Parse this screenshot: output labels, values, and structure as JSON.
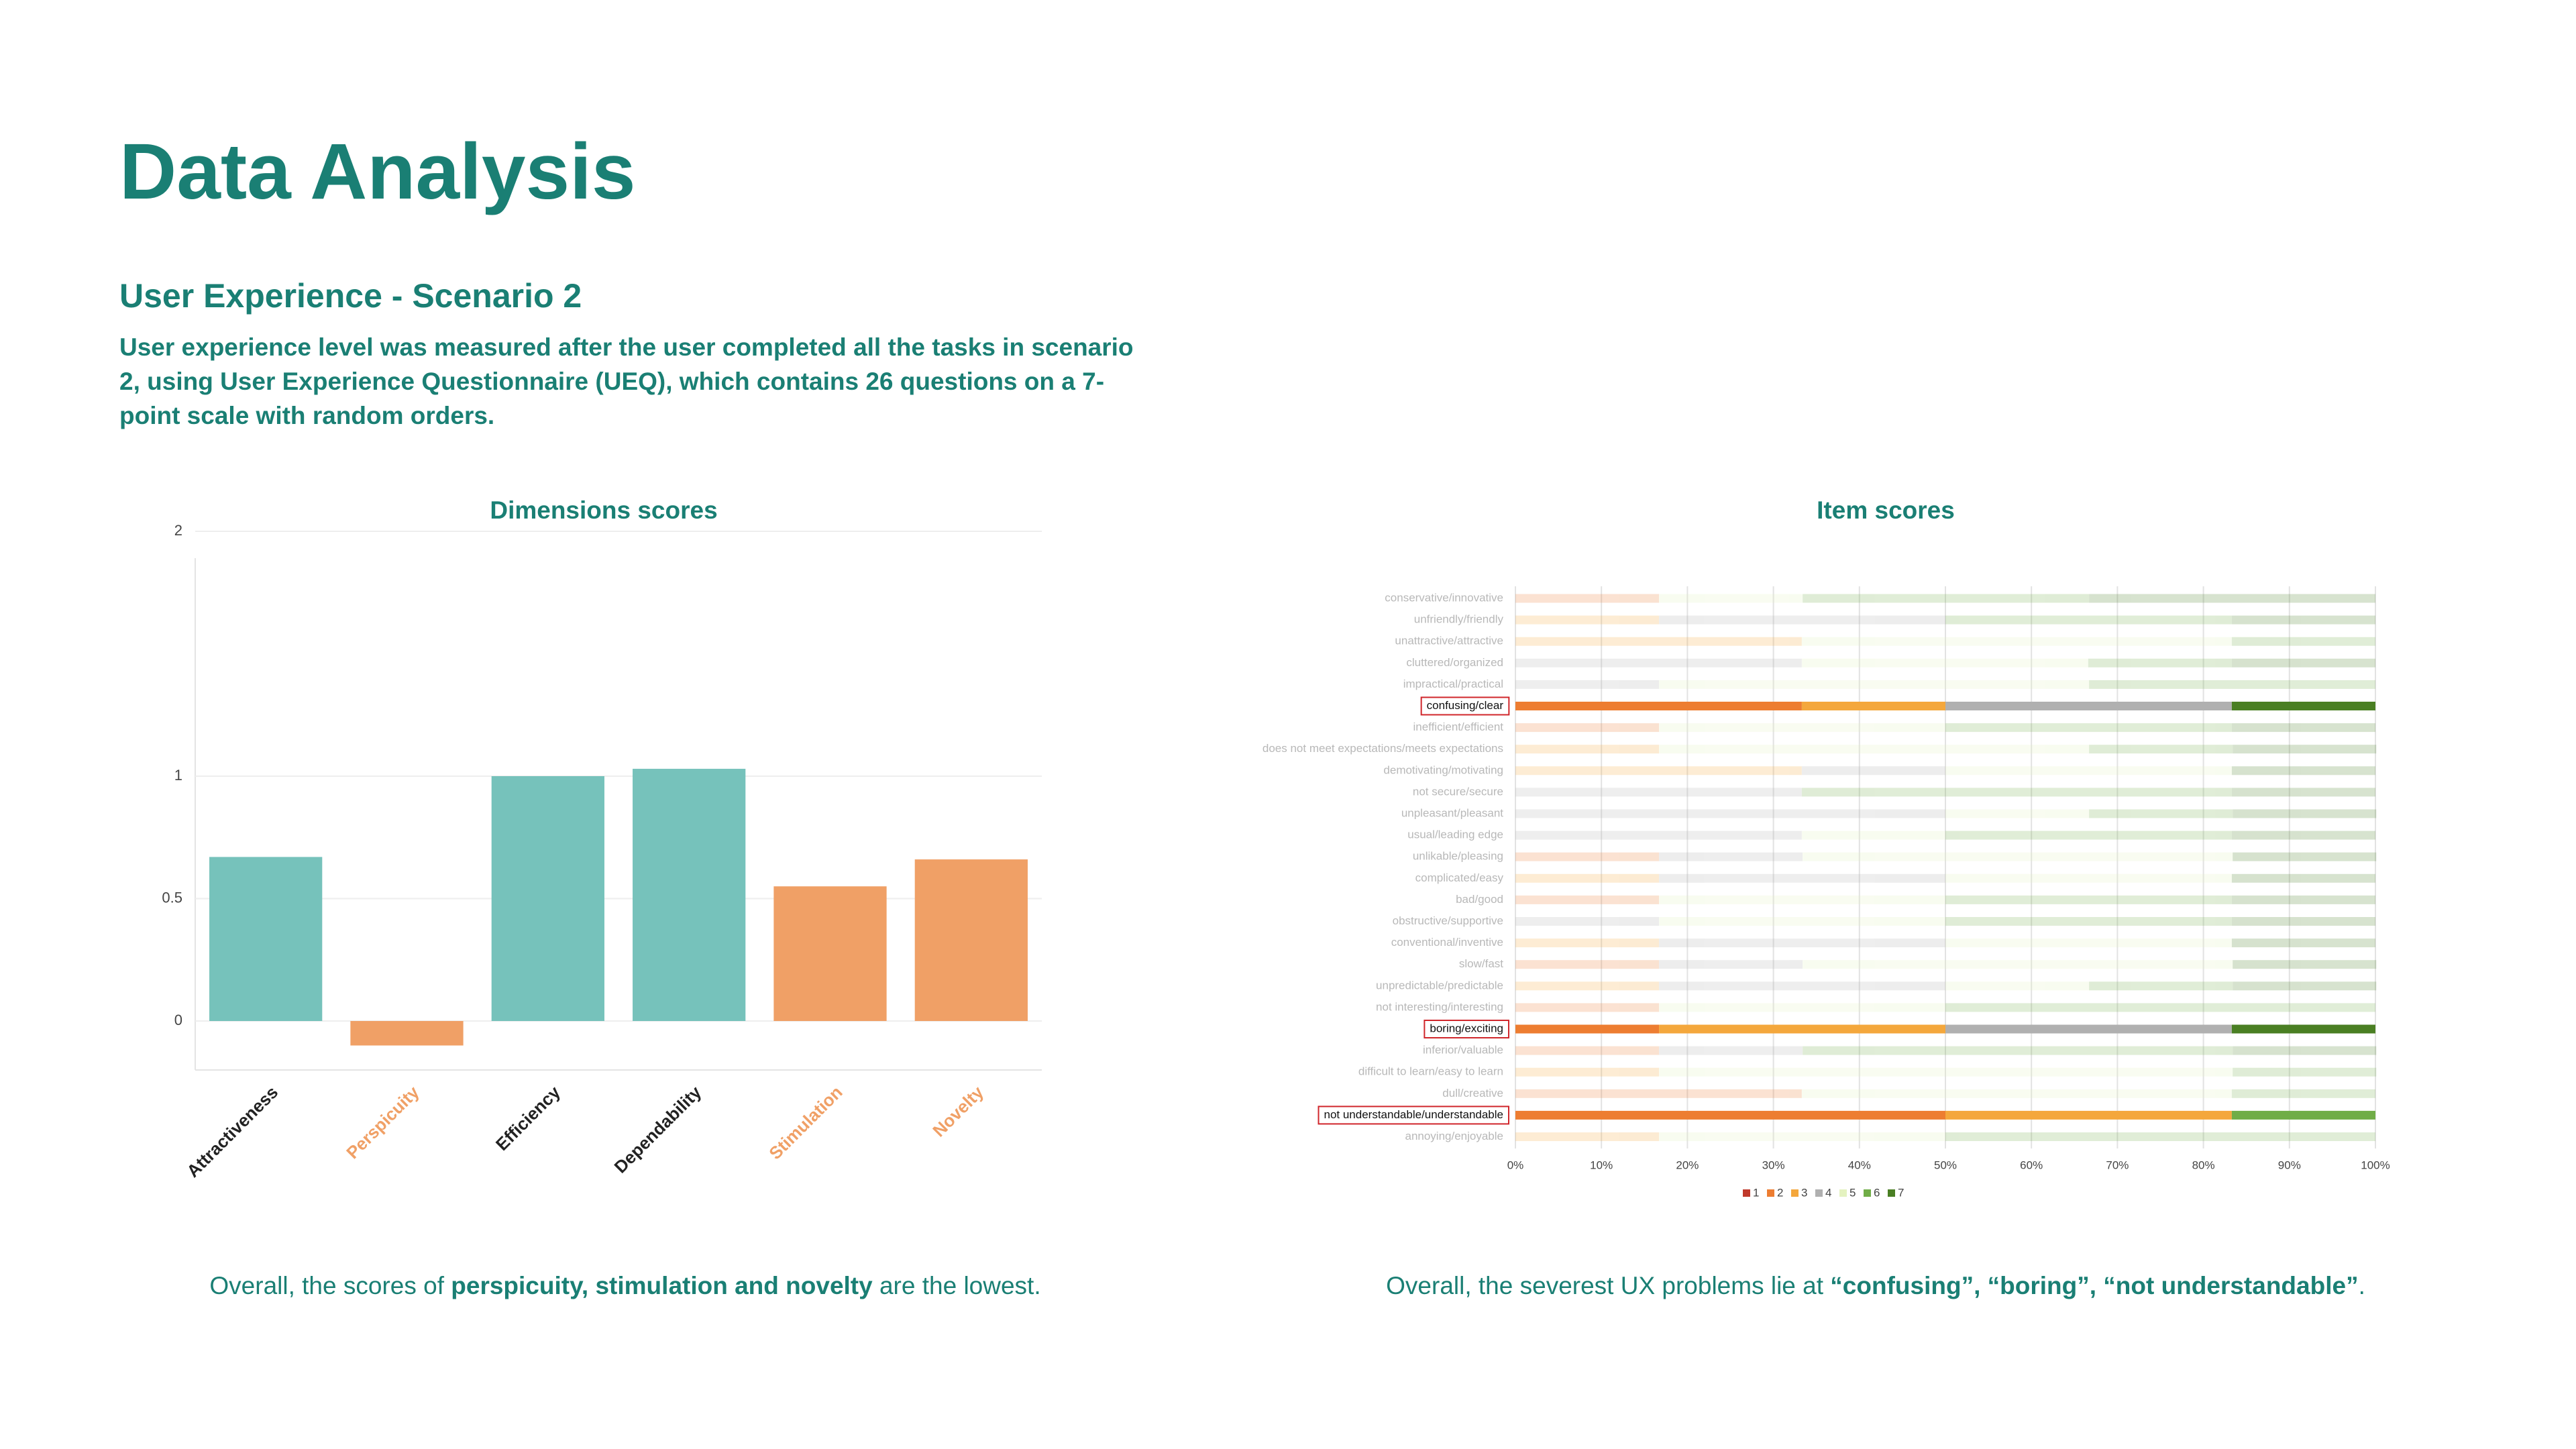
{
  "header": {
    "title": "Data Analysis",
    "subtitle": "User Experience - Scenario 2",
    "description": "User experience level was measured after the user completed all the tasks in scenario 2, using User Experience Questionnaire (UEQ), which contains 26 questions on a 7-point scale with random orders."
  },
  "chart_data": [
    {
      "type": "bar",
      "title": "Dimensions scores",
      "categories": [
        "Attractiveness",
        "Perspicuity",
        "Efficiency",
        "Dependability",
        "Stimulation",
        "Novelty"
      ],
      "values": [
        0.67,
        -0.1,
        1.0,
        1.03,
        0.55,
        0.66
      ],
      "colors": [
        "#76c2bb",
        "#f0a066",
        "#76c2bb",
        "#76c2bb",
        "#f0a066",
        "#f0a066"
      ],
      "label_colors": [
        "#222222",
        "#f0a066",
        "#222222",
        "#222222",
        "#f0a066",
        "#f0a066"
      ],
      "ylim": [
        -0.2,
        2
      ],
      "yticks": [
        0,
        0.5,
        1,
        2
      ],
      "grid": true
    },
    {
      "type": "stacked_barh",
      "title": "Item scores",
      "categories": [
        "conservative/innovative",
        "unfriendly/friendly",
        "unattractive/attractive",
        "cluttered/organized",
        "impractical/practical",
        "confusing/clear",
        "inefficient/efficient",
        "does not meet expectations/meets expectations",
        "demotivating/motivating",
        "not secure/secure",
        "unpleasant/pleasant",
        "usual/leading edge",
        "unlikable/pleasing",
        "complicated/easy",
        "bad/good",
        "obstructive/supportive",
        "conventional/inventive",
        "slow/fast",
        "unpredictable/predictable",
        "not interesting/interesting",
        "boring/exciting",
        "inferior/valuable",
        "difficult to learn/easy to learn",
        "dull/creative",
        "not understandable/understandable",
        "annoying/enjoyable"
      ],
      "series": [
        {
          "name": "1",
          "color": "#c0392b",
          "values": [
            0,
            0,
            0,
            0,
            0,
            0,
            0,
            0,
            0,
            0,
            0,
            0,
            0,
            0,
            0,
            0,
            0,
            0,
            0,
            0,
            0,
            0,
            0,
            0,
            0,
            0
          ]
        },
        {
          "name": "2",
          "color": "#ed7d31",
          "values": [
            16.7,
            0,
            0,
            0,
            0,
            33.3,
            16.7,
            0,
            0,
            0,
            0,
            0,
            16.7,
            0,
            16.7,
            0,
            0,
            16.7,
            0,
            16.7,
            16.7,
            16.7,
            0,
            33.3,
            50,
            0
          ]
        },
        {
          "name": "3",
          "color": "#f4a73c",
          "values": [
            0,
            16.7,
            33.3,
            0,
            0,
            16.7,
            0,
            16.7,
            33.3,
            0,
            0,
            0,
            0,
            16.7,
            0,
            0,
            16.7,
            0,
            16.7,
            0,
            33.3,
            0,
            16.7,
            0,
            33.3,
            16.7
          ]
        },
        {
          "name": "4",
          "color": "#b0b0b0",
          "values": [
            0,
            33.3,
            0,
            33.3,
            16.7,
            33.3,
            0,
            0,
            16.7,
            33.3,
            50,
            33.3,
            16.7,
            33.3,
            0,
            16.7,
            33.3,
            16.7,
            33.3,
            0,
            33.3,
            16.7,
            0,
            0,
            0,
            0
          ]
        },
        {
          "name": "5",
          "color": "#e4f2c0",
          "values": [
            16.7,
            0,
            50,
            33.3,
            50,
            0,
            33.3,
            50,
            33.3,
            0,
            16.7,
            16.7,
            50,
            33.3,
            33.3,
            33.3,
            33.3,
            50,
            16.7,
            33.3,
            0,
            0,
            66.7,
            50,
            0,
            33.3
          ]
        },
        {
          "name": "6",
          "color": "#70ad47",
          "values": [
            33.3,
            33.3,
            16.7,
            16.7,
            33.3,
            0,
            33.3,
            16.7,
            0,
            50,
            16.7,
            33.3,
            0,
            0,
            33.3,
            33.3,
            0,
            0,
            16.7,
            50,
            0,
            50,
            16.7,
            16.7,
            16.7,
            50
          ]
        },
        {
          "name": "7",
          "color": "#4a7f23",
          "values": [
            33.3,
            16.7,
            0,
            16.7,
            0,
            16.7,
            16.7,
            16.7,
            16.7,
            16.7,
            16.7,
            16.7,
            16.7,
            16.7,
            16.7,
            16.7,
            16.7,
            16.7,
            16.7,
            0,
            16.7,
            16.7,
            0,
            0,
            0,
            0
          ]
        }
      ],
      "xlim": [
        0,
        100
      ],
      "xticks": [
        {
          "value": 0,
          "label": "0%"
        },
        {
          "value": 10,
          "label": "10%"
        },
        {
          "value": 20,
          "label": "20%"
        },
        {
          "value": 30,
          "label": "30%"
        },
        {
          "value": 40,
          "label": "40%"
        },
        {
          "value": 50,
          "label": "50%"
        },
        {
          "value": 60,
          "label": "60%"
        },
        {
          "value": 70,
          "label": "70%"
        },
        {
          "value": 80,
          "label": "80%"
        },
        {
          "value": 90,
          "label": "90%"
        },
        {
          "value": 100,
          "label": "100%"
        }
      ],
      "highlight": [
        5,
        20,
        24
      ],
      "grid": true,
      "legend": "bottom"
    }
  ],
  "captions": [
    {
      "parts": [
        {
          "text": "Overall, the scores of "
        },
        {
          "text": "perspicuity, stimulation and novelty",
          "bold": true
        },
        {
          "text": " are the lowest."
        }
      ]
    },
    {
      "parts": [
        {
          "text": "Overall, the severest UX problems lie at "
        },
        {
          "text": "“confusing”, “boring”, “not understandable”",
          "bold": true
        },
        {
          "text": "."
        }
      ]
    }
  ]
}
